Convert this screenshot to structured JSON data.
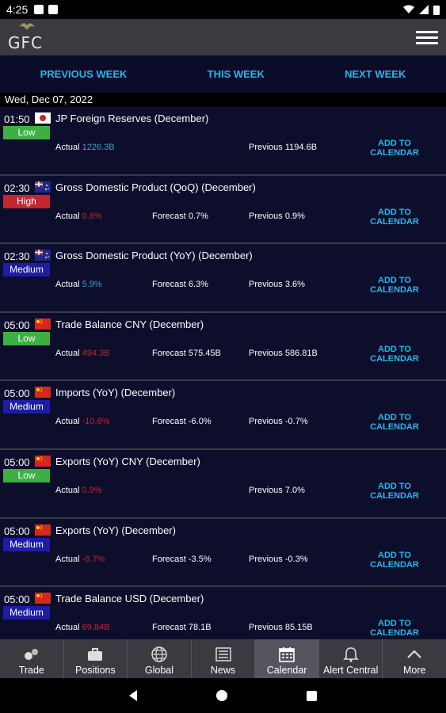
{
  "status_bar": {
    "time": "4:25"
  },
  "app": {
    "logo_text": "GFC"
  },
  "week_nav": {
    "previous": "PREVIOUS WEEK",
    "this": "THIS WEEK",
    "next": "NEXT WEEK"
  },
  "date_header": "Wed, Dec 07, 2022",
  "events": [
    {
      "time": "01:50",
      "flag": "jp-flag",
      "title": "JP Foreign Reserves (December)",
      "impact": "Low",
      "actual": "1226.3B",
      "actual_color": "pos",
      "forecast": "",
      "previous": "1194.6B",
      "add": "ADD TO CALENDAR"
    },
    {
      "time": "02:30",
      "flag": "au-flag",
      "title": "Gross Domestic Product (QoQ) (December)",
      "impact": "High",
      "actual": "0.6%",
      "actual_color": "neg",
      "forecast": "0.7%",
      "previous": "0.9%",
      "add": "ADD TO CALENDAR"
    },
    {
      "time": "02:30",
      "flag": "au-flag",
      "title": "Gross Domestic Product (YoY) (December)",
      "impact": "Medium",
      "actual": "5.9%",
      "actual_color": "pos",
      "forecast": "6.3%",
      "previous": "3.6%",
      "add": "ADD TO CALENDAR"
    },
    {
      "time": "05:00",
      "flag": "cn-flag",
      "title": "Trade Balance CNY (December)",
      "impact": "Low",
      "actual": "494.3B",
      "actual_color": "neg",
      "forecast": "575.45B",
      "previous": "586.81B",
      "add": "ADD TO CALENDAR"
    },
    {
      "time": "05:00",
      "flag": "cn-flag",
      "title": "Imports (YoY) (December)",
      "impact": "Medium",
      "actual": "-10.6%",
      "actual_color": "neg",
      "forecast": "-6.0%",
      "previous": "-0.7%",
      "add": "ADD TO CALENDAR"
    },
    {
      "time": "05:00",
      "flag": "cn-flag",
      "title": "Exports (YoY) CNY (December)",
      "impact": "Low",
      "actual": "0.9%",
      "actual_color": "neg",
      "forecast": "",
      "previous": "7.0%",
      "add": "ADD TO CALENDAR"
    },
    {
      "time": "05:00",
      "flag": "cn-flag",
      "title": "Exports (YoY) (December)",
      "impact": "Medium",
      "actual": "-8.7%",
      "actual_color": "neg",
      "forecast": "-3.5%",
      "previous": "-0.3%",
      "add": "ADD TO CALENDAR"
    },
    {
      "time": "05:00",
      "flag": "cn-flag",
      "title": "Trade Balance USD (December)",
      "impact": "Medium",
      "actual": "69.84B",
      "actual_color": "neg",
      "forecast": "78.1B",
      "previous": "85.15B",
      "add": "ADD TO CALENDAR"
    }
  ],
  "labels": {
    "actual": "Actual",
    "forecast": "Forecast",
    "previous": "Previous"
  },
  "bottom_nav": [
    {
      "label": "Trade",
      "icon": "trade-icon"
    },
    {
      "label": "Positions",
      "icon": "briefcase-icon"
    },
    {
      "label": "Global",
      "icon": "globe-icon"
    },
    {
      "label": "News",
      "icon": "news-icon"
    },
    {
      "label": "Calendar",
      "icon": "calendar-icon",
      "active": true
    },
    {
      "label": "Alert Central",
      "icon": "bell-icon"
    },
    {
      "label": "More",
      "icon": "chevron-up-icon"
    }
  ],
  "colors": {
    "accent": "#29b6e8",
    "low": "#3cb043",
    "high": "#c0282d",
    "medium": "#1d1da8",
    "negative": "#c0282d",
    "positive": "#3ba3d6"
  }
}
